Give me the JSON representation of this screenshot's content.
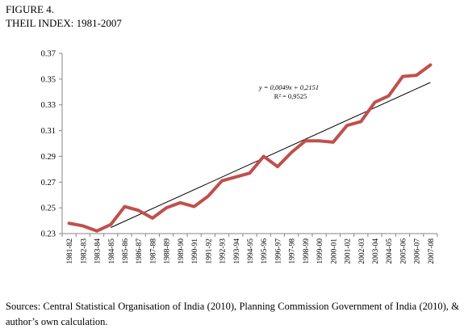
{
  "figure_label": "FIGURE 4.",
  "title": "THEIL INDEX: 1981-2007",
  "source_note": "Sources: Central Statistical Organisation of India (2010), Planning Commission Government of India (2010), & author’s own calculation.",
  "chart_data": {
    "type": "line",
    "categories": [
      "1981-82",
      "1982-83",
      "1983-84",
      "1984-85",
      "1985-86",
      "1986-87",
      "1987-88",
      "1988-89",
      "1989-90",
      "1990-91",
      "1991-92",
      "1992-93",
      "1993-94",
      "1994-95",
      "1995-96",
      "1996-97",
      "1997-98",
      "1998-99",
      "1999-00",
      "2000-01",
      "2001-02",
      "2002-03",
      "2003-04",
      "2004-05",
      "2005-06",
      "2006-07",
      "2007-08"
    ],
    "series": [
      {
        "values": [
          0.238,
          0.236,
          0.232,
          0.237,
          0.251,
          0.248,
          0.242,
          0.25,
          0.254,
          0.251,
          0.259,
          0.271,
          0.274,
          0.277,
          0.29,
          0.282,
          0.293,
          0.302,
          0.302,
          0.301,
          0.314,
          0.317,
          0.332,
          0.337,
          0.352,
          0.353,
          0.361
        ],
        "color": "#c0504d"
      }
    ],
    "trendline": {
      "slope": 0.0049,
      "intercept": 0.2151,
      "equation": "y = 0,0049x + 0,2151",
      "r_squared": "R² = 0,9525",
      "x_start_index": 3,
      "color": "#000000"
    },
    "yticks": [
      "0.23",
      "0.25",
      "0.27",
      "0.29",
      "0.31",
      "0.33",
      "0.35",
      "0.37"
    ],
    "ylim": [
      0.23,
      0.37
    ],
    "grid": false,
    "legend": "none"
  }
}
